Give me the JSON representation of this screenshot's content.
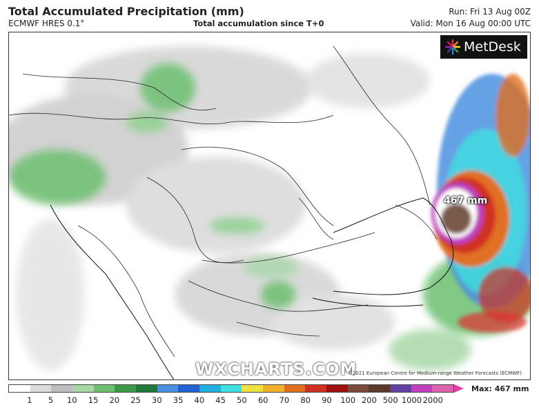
{
  "header": {
    "title": "Total Accumulated Precipitation (mm)",
    "model": "ECMWF HRES 0.1°",
    "subtitle": "Total accumulation since T+0",
    "run": "Run: Fri 13 Aug 00Z",
    "valid": "Valid: Mon 16 Aug 00:00 UTC"
  },
  "map": {
    "max_label": "467 mm",
    "watermark": "WXCHARTS.COM",
    "copyright": "©2021 European Centre for Medium-range Weather Forecasts (ECMWF)",
    "logo_text": "MetDesk"
  },
  "colorbar": {
    "ticks": [
      "1",
      "5",
      "10",
      "15",
      "20",
      "25",
      "30",
      "35",
      "40",
      "45",
      "50",
      "60",
      "70",
      "80",
      "90",
      "100",
      "200",
      "500",
      "1000",
      "2000"
    ],
    "colors": [
      "#ffffff",
      "#dcdcdc",
      "#bdbdbd",
      "#a8d8a8",
      "#6cc070",
      "#3a9a48",
      "#1f7a3a",
      "#4a90e0",
      "#2060d0",
      "#20b0e0",
      "#40e0e0",
      "#f0e040",
      "#f0b030",
      "#e07020",
      "#d03020",
      "#a01010",
      "#7a4a3a",
      "#5a3a2a",
      "#6040a0",
      "#c040c0",
      "#e060b0"
    ],
    "max_text": "Max: 467 mm"
  }
}
